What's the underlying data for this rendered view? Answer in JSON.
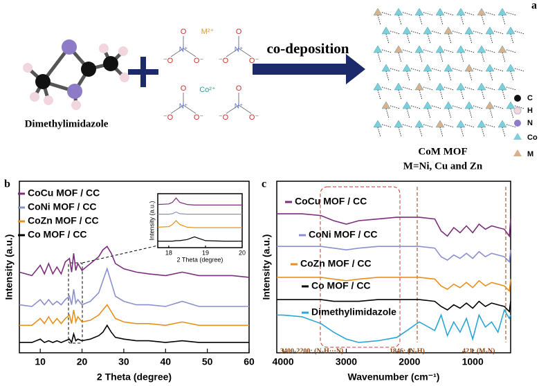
{
  "panel_a": {
    "label": "a",
    "molecule": "Dimethylimidazole",
    "metal_ion": "M²⁺",
    "cobalt_ion": "Co²⁺",
    "nitrate_atoms": [
      "O",
      "N⁺",
      "⁻O",
      "O⁻"
    ],
    "arrow": "co-deposition",
    "product": "CoM MOF",
    "product_note": "M=Ni, Cu and Zn",
    "legend": [
      "C",
      "H",
      "N",
      "Co",
      "M"
    ]
  },
  "chart_data": [
    {
      "type": "line",
      "label": "b",
      "xlabel": "2 Theta (degree)",
      "ylabel": "Intensity (a.u.)",
      "x": [
        5,
        8,
        10,
        11,
        12,
        13,
        14,
        15,
        16,
        17,
        17.5,
        18,
        18.5,
        19,
        20,
        22,
        24,
        25,
        26,
        27,
        28,
        30,
        33,
        36,
        40,
        44,
        48,
        52,
        56,
        60
      ],
      "series": [
        {
          "name": "CoCu MOF / CC",
          "color": "#7b2e7d",
          "values": [
            47,
            45,
            51,
            46,
            52,
            46,
            50,
            46,
            53,
            55,
            47,
            58,
            48,
            52,
            48,
            52,
            56,
            60,
            62,
            58,
            52,
            49,
            47,
            46,
            45,
            47,
            45,
            45,
            45,
            44
          ]
        },
        {
          "name": "CoNi MOF / CC",
          "color": "#8a8fd0",
          "values": [
            28,
            27,
            31,
            28,
            31,
            28,
            30,
            28,
            31,
            33,
            28,
            37,
            29,
            31,
            28,
            30,
            35,
            42,
            49,
            41,
            33,
            30,
            28,
            28,
            27,
            30,
            27,
            27,
            27,
            27
          ]
        },
        {
          "name": "CoZn MOF / CC",
          "color": "#e8901a",
          "values": [
            16,
            16,
            20,
            17,
            21,
            17,
            20,
            17,
            20,
            22,
            17,
            25,
            18,
            21,
            18,
            19,
            22,
            25,
            28,
            24,
            20,
            18,
            17,
            17,
            16,
            18,
            16,
            16,
            16,
            16
          ]
        },
        {
          "name": "Co MOF / CC",
          "color": "#000000",
          "values": [
            6,
            6,
            8,
            6,
            7,
            6,
            7,
            6,
            7,
            8,
            6,
            11,
            7,
            8,
            7,
            8,
            10,
            12,
            16,
            12,
            9,
            8,
            7,
            7,
            6,
            7,
            6,
            6,
            6,
            6
          ]
        }
      ],
      "xlim": [
        5,
        60
      ],
      "ylim": [
        0,
        100
      ],
      "xticks": [
        10,
        20,
        30,
        40,
        50,
        60
      ],
      "legend": "upper left"
    },
    {
      "type": "line",
      "xlabel": "2 Theta (degree)",
      "ylabel": "Intensity (a.u.)",
      "x": [
        17.7,
        18,
        18.1,
        18.2,
        18.3,
        18.5,
        18.7,
        19,
        19.5,
        20
      ],
      "series": [
        {
          "color": "#7b2e7d",
          "values": [
            80,
            81,
            84,
            92,
            84,
            80,
            79,
            79,
            79,
            79
          ]
        },
        {
          "color": "#8a8fd0",
          "values": [
            62,
            62,
            63,
            66,
            63,
            62,
            62,
            62,
            62,
            62
          ]
        },
        {
          "color": "#e8901a",
          "values": [
            38,
            39,
            43,
            50,
            43,
            38,
            37,
            37,
            37,
            37
          ]
        },
        {
          "color": "#000000",
          "values": [
            12,
            12,
            12,
            13,
            13,
            15,
            20,
            13,
            12,
            12
          ]
        }
      ],
      "xlim": [
        17.7,
        20
      ],
      "ylim": [
        0,
        100
      ],
      "xticks": [
        18,
        19,
        20
      ]
    },
    {
      "type": "line",
      "label": "c",
      "xlabel": "Wavenumber (cm⁻¹)",
      "ylabel": "Intensity (a.u.)",
      "x": [
        4100,
        4000,
        3700,
        3400,
        3200,
        3000,
        2800,
        2500,
        2200,
        2000,
        1846,
        1600,
        1500,
        1400,
        1300,
        1200,
        1100,
        1000,
        900,
        800,
        700,
        600,
        500,
        421,
        400
      ],
      "series": [
        {
          "name": "CoCu MOF / CC",
          "color": "#7b2e7d",
          "values": [
            81,
            81,
            81,
            80,
            77,
            75,
            77,
            78,
            79,
            79,
            79,
            78,
            71,
            68,
            73,
            70,
            74,
            70,
            75,
            72,
            74,
            73,
            72,
            68,
            78
          ]
        },
        {
          "name": "CoNi MOF / CC",
          "color": "#8a8fd0",
          "values": [
            62,
            62,
            62,
            62,
            61,
            60,
            61,
            62,
            62,
            62,
            62,
            61,
            56,
            54,
            57,
            55,
            58,
            55,
            59,
            56,
            58,
            57,
            56,
            53,
            60
          ]
        },
        {
          "name": "CoZn MOF / CC",
          "color": "#e8901a",
          "values": [
            44,
            44,
            44,
            44,
            43,
            42,
            43,
            44,
            44,
            44,
            44,
            43,
            39,
            37,
            40,
            38,
            41,
            38,
            42,
            39,
            41,
            40,
            39,
            36,
            43
          ]
        },
        {
          "name": "Co MOF / CC",
          "color": "#000000",
          "values": [
            31,
            31,
            31,
            31,
            30,
            30,
            30,
            31,
            31,
            31,
            31,
            30,
            27,
            25,
            28,
            26,
            29,
            26,
            30,
            27,
            29,
            28,
            27,
            24,
            30
          ]
        },
        {
          "name": "Dimethylimidazole",
          "color": "#2aa6d6",
          "values": [
            22,
            22,
            21,
            17,
            12,
            8,
            6,
            7,
            9,
            14,
            18,
            13,
            22,
            10,
            18,
            12,
            20,
            8,
            22,
            15,
            18,
            12,
            25,
            20,
            22
          ]
        }
      ],
      "xlim": [
        4100,
        400
      ],
      "ylim": [
        0,
        100
      ],
      "xticks": [
        4000,
        3000,
        2000,
        1000
      ],
      "annotations": [
        "3400-2200: (N-H···N)",
        "1846: (N-H)",
        "421: (M-N)"
      ]
    }
  ]
}
